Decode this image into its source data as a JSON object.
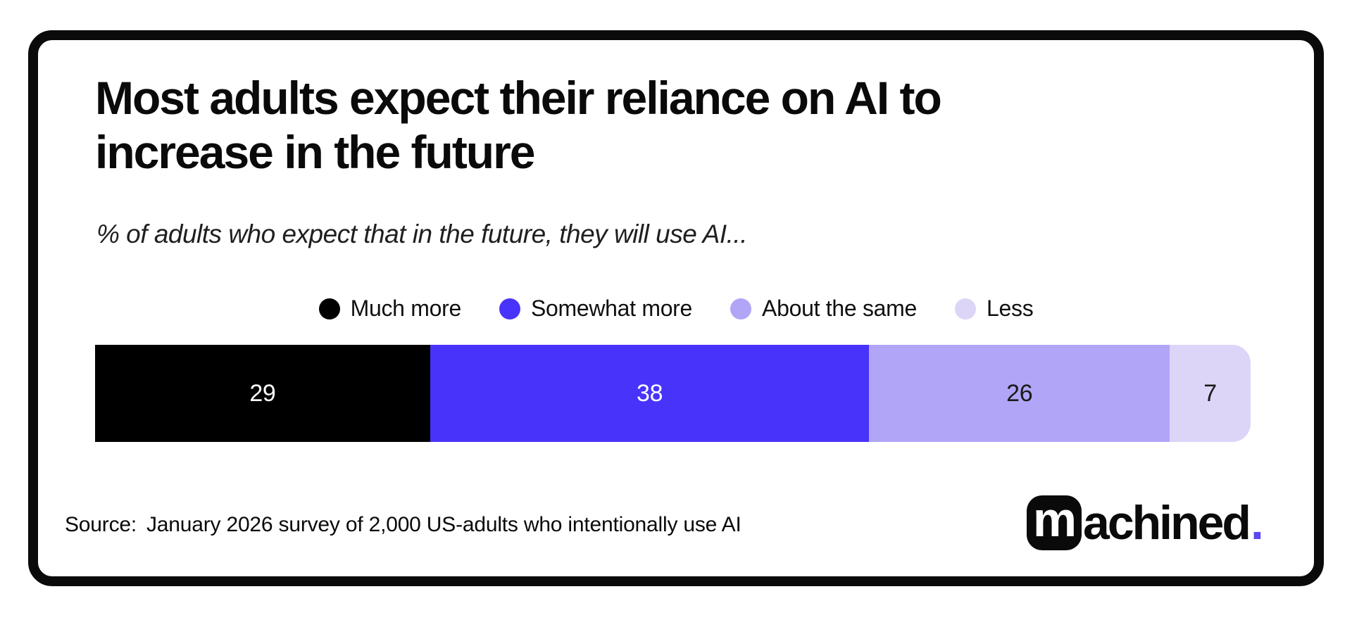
{
  "card": {
    "title_lines": [
      "Most adults expect their reliance on AI to",
      "increase in the future"
    ],
    "subtitle": "% of adults who expect that in the future, they will use AI...",
    "source_label": "Source:",
    "source_text": "January 2026 survey of 2,000 US-adults who intentionally use AI",
    "logo": {
      "mark": "m",
      "wordmark": "achined",
      "dot": ".",
      "dot_color": "#5b48f2"
    }
  },
  "colors": {
    "background": "#ffffff",
    "card_border": "#0a0a0a",
    "text": "#0a0a0a",
    "accent": "#4833fa"
  },
  "chart_data": {
    "type": "bar",
    "variant": "horizontal-stacked-percentage",
    "title": "Most adults expect their reliance on AI to increase in the future",
    "subtitle": "% of adults who expect that in the future, they will use AI...",
    "categories": [
      "Much more",
      "Somewhat more",
      "About the same",
      "Less"
    ],
    "values": [
      29,
      38,
      26,
      7
    ],
    "unit": "%",
    "xlim": [
      0,
      100
    ],
    "colors": [
      "#000000",
      "#4833fa",
      "#b1a5f7",
      "#dcd5f8"
    ],
    "value_label_colors": [
      "#ffffff",
      "#ffffff",
      "#1a1a1a",
      "#1a1a1a"
    ],
    "legend_position": "top-center",
    "grid": false,
    "axes_visible": false,
    "source": "Source:  January 2026 survey of 2,000 US-adults who intentionally use AI"
  }
}
